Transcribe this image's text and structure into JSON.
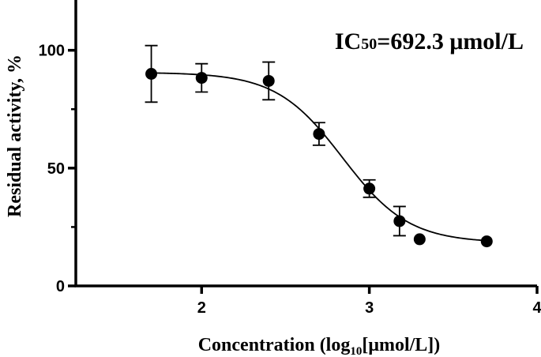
{
  "chart_data": {
    "type": "scatter",
    "title": "",
    "annotation": {
      "prefix": "IC",
      "subscript": "50",
      "suffix": "=692.3 μmol/L"
    },
    "xlabel": {
      "prefix": "Concentration (log",
      "subscript": "10",
      "suffix": "[μmol/L])"
    },
    "ylabel": "Residual activity, %",
    "xlim": [
      1.25,
      4.0
    ],
    "ylim": [
      0,
      120
    ],
    "xticks": [
      2,
      3,
      4
    ],
    "yticks": [
      0,
      50,
      100
    ],
    "x_tick_labels": [
      "2",
      "3",
      "4"
    ],
    "y_tick_labels": [
      "0",
      "50",
      "100"
    ],
    "grid": false,
    "series": [
      {
        "points": [
          {
            "x": 1.7,
            "y": 90.0,
            "err": 12.0
          },
          {
            "x": 2.0,
            "y": 88.3,
            "err": 6.0
          },
          {
            "x": 2.4,
            "y": 87.0,
            "err": 8.0
          },
          {
            "x": 2.7,
            "y": 64.5,
            "err": 4.8
          },
          {
            "x": 3.0,
            "y": 41.3,
            "err": 3.7
          },
          {
            "x": 3.18,
            "y": 27.5,
            "err": 6.2
          },
          {
            "x": 3.3,
            "y": 19.8,
            "err": 0
          },
          {
            "x": 3.7,
            "y": 18.9,
            "err": 0
          }
        ]
      }
    ],
    "fit": {
      "model": "sigmoid",
      "bottom": 18.3,
      "top": 90.6,
      "log_ic50": 2.84,
      "hill": 2.2,
      "x_range": [
        1.7,
        3.7
      ]
    }
  }
}
